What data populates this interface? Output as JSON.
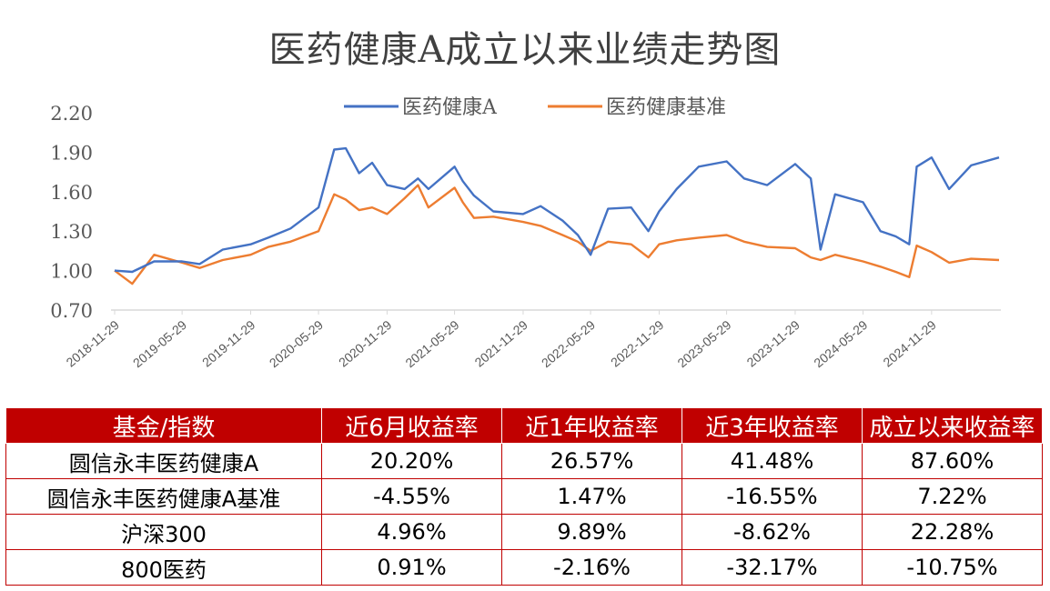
{
  "chart_data": {
    "type": "line",
    "title": "医药健康A成立以来业绩走势图",
    "xlabel": "",
    "ylabel": "",
    "ylim": [
      0.7,
      2.2
    ],
    "y_ticks": [
      "0.70",
      "1.00",
      "1.30",
      "1.60",
      "1.90",
      "2.20"
    ],
    "x_ticks": [
      "2018-11-29",
      "2019-05-29",
      "2019-11-29",
      "2020-05-29",
      "2020-11-29",
      "2021-05-29",
      "2021-11-29",
      "2022-05-29",
      "2022-11-29",
      "2023-05-29",
      "2023-11-29",
      "2024-05-29",
      "2024-11-29"
    ],
    "legend_position": "top-center",
    "grid": false,
    "series": [
      {
        "name": "医药健康A",
        "color": "#4472c4",
        "x": [
          "2018-11-29",
          "2019-01-15",
          "2019-03-15",
          "2019-05-29",
          "2019-07-15",
          "2019-09-15",
          "2019-11-29",
          "2020-01-15",
          "2020-03-15",
          "2020-05-29",
          "2020-07-10",
          "2020-08-10",
          "2020-09-15",
          "2020-10-20",
          "2020-11-29",
          "2021-01-15",
          "2021-02-20",
          "2021-03-20",
          "2021-05-29",
          "2021-06-20",
          "2021-07-20",
          "2021-09-10",
          "2021-11-29",
          "2022-01-15",
          "2022-03-15",
          "2022-04-25",
          "2022-05-29",
          "2022-07-15",
          "2022-09-15",
          "2022-10-31",
          "2022-11-29",
          "2023-01-15",
          "2023-03-15",
          "2023-05-29",
          "2023-07-15",
          "2023-09-15",
          "2023-11-29",
          "2024-01-10",
          "2024-02-05",
          "2024-03-15",
          "2024-05-29",
          "2024-07-15",
          "2024-08-25",
          "2024-09-30",
          "2024-10-20",
          "2024-11-29",
          "2025-01-15",
          "2025-03-15",
          "2025-05-29"
        ],
        "values": [
          1.0,
          0.99,
          1.07,
          1.07,
          1.05,
          1.16,
          1.2,
          1.25,
          1.32,
          1.48,
          1.92,
          1.93,
          1.74,
          1.82,
          1.65,
          1.62,
          1.7,
          1.62,
          1.79,
          1.68,
          1.57,
          1.45,
          1.43,
          1.49,
          1.38,
          1.27,
          1.12,
          1.47,
          1.48,
          1.3,
          1.45,
          1.62,
          1.79,
          1.83,
          1.7,
          1.65,
          1.81,
          1.7,
          1.16,
          1.58,
          1.52,
          1.3,
          1.26,
          1.2,
          1.79,
          1.86,
          1.62,
          1.8,
          1.86
        ]
      },
      {
        "name": "医药健康基准",
        "color": "#ed7d31",
        "x": [
          "2018-11-29",
          "2019-01-15",
          "2019-03-15",
          "2019-05-29",
          "2019-07-15",
          "2019-09-15",
          "2019-11-29",
          "2020-01-15",
          "2020-03-15",
          "2020-05-29",
          "2020-07-10",
          "2020-08-10",
          "2020-09-15",
          "2020-10-20",
          "2020-11-29",
          "2021-01-15",
          "2021-02-20",
          "2021-03-20",
          "2021-05-29",
          "2021-06-20",
          "2021-07-20",
          "2021-09-10",
          "2021-11-29",
          "2022-01-15",
          "2022-03-15",
          "2022-04-25",
          "2022-05-29",
          "2022-07-15",
          "2022-09-15",
          "2022-10-31",
          "2022-11-29",
          "2023-01-15",
          "2023-03-15",
          "2023-05-29",
          "2023-07-15",
          "2023-09-15",
          "2023-11-29",
          "2024-01-10",
          "2024-02-05",
          "2024-03-15",
          "2024-05-29",
          "2024-07-15",
          "2024-08-25",
          "2024-09-30",
          "2024-10-20",
          "2024-11-29",
          "2025-01-15",
          "2025-03-15",
          "2025-05-29"
        ],
        "values": [
          1.0,
          0.9,
          1.12,
          1.06,
          1.02,
          1.08,
          1.12,
          1.18,
          1.22,
          1.3,
          1.58,
          1.54,
          1.46,
          1.48,
          1.43,
          1.55,
          1.65,
          1.48,
          1.63,
          1.52,
          1.4,
          1.41,
          1.37,
          1.34,
          1.27,
          1.22,
          1.15,
          1.22,
          1.2,
          1.1,
          1.2,
          1.23,
          1.25,
          1.27,
          1.22,
          1.18,
          1.17,
          1.1,
          1.08,
          1.12,
          1.07,
          1.03,
          0.99,
          0.95,
          1.19,
          1.14,
          1.06,
          1.09,
          1.08
        ]
      }
    ]
  },
  "table": {
    "headers": [
      "基金/指数",
      "近6月收益率",
      "近1年收益率",
      "近3年收益率",
      "成立以来收益率"
    ],
    "rows": [
      [
        "圆信永丰医药健康A",
        "20.20%",
        "26.57%",
        "41.48%",
        "87.60%"
      ],
      [
        "圆信永丰医药健康A基准",
        "-4.55%",
        "1.47%",
        "-16.55%",
        "7.22%"
      ],
      [
        "沪深300",
        "4.96%",
        "9.89%",
        "-8.62%",
        "22.28%"
      ],
      [
        "800医药",
        "0.91%",
        "-2.16%",
        "-32.17%",
        "-10.75%"
      ]
    ]
  }
}
